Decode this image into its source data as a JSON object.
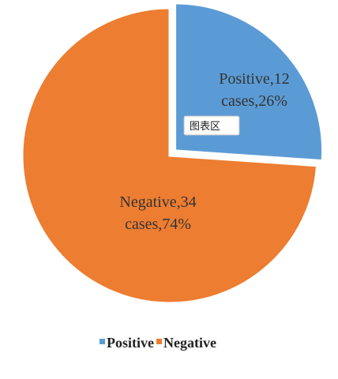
{
  "chart_data": {
    "type": "pie",
    "categories": [
      "Positive",
      "Negative"
    ],
    "values": [
      12,
      34
    ],
    "percentages": [
      26,
      74
    ],
    "slice_labels": [
      [
        "Positive,12",
        "cases,26%"
      ],
      [
        "Negative,34",
        "cases,74%"
      ]
    ],
    "colors": [
      "#5b9bd5",
      "#ed7d31"
    ],
    "legend": {
      "placement": "bottom",
      "entries": [
        "Positive",
        "Negative"
      ]
    },
    "exploded_slice": "Positive",
    "title": "",
    "xlabel": "",
    "ylabel": ""
  },
  "tooltip": {
    "text": "图表区"
  }
}
